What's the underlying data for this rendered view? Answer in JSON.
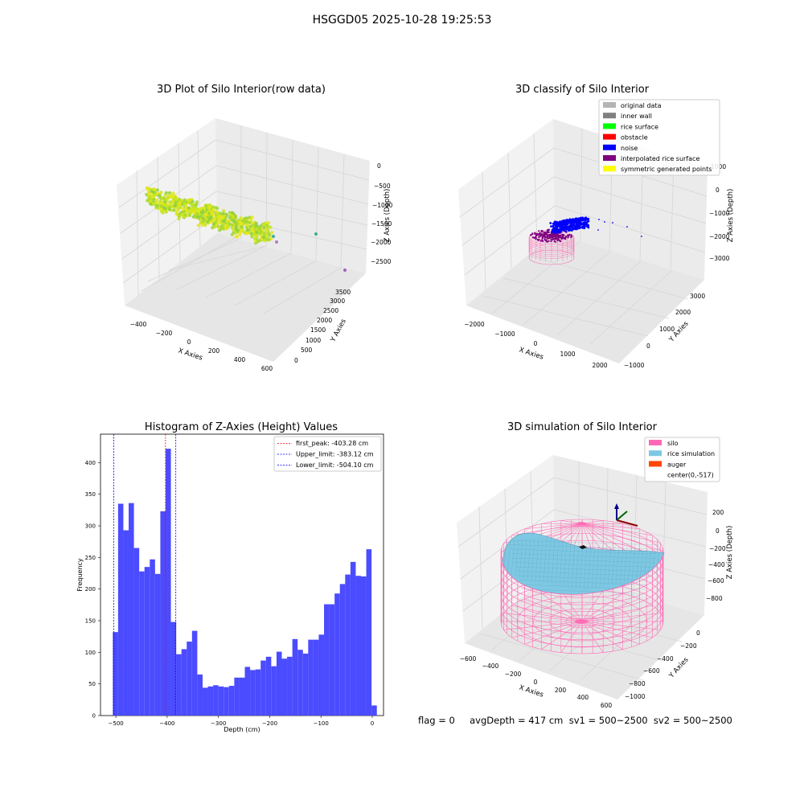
{
  "suptitle": "HSGGD05 2025-10-28 19:25:53",
  "footer": "flag = 0     avgDepth = 417 cm  sv1 = 500~2500  sv2 = 500~2500",
  "colors": {
    "pane": "#f2f2f2",
    "grid": "#d6d6d6",
    "hist": "#4b4bff",
    "silo": "#ff69b4",
    "rice": "#7ec8e3",
    "auger": "#ff4500",
    "noise": "#0000ff",
    "interp": "#800080"
  },
  "chart_data": [
    {
      "type": "scatter",
      "title": "3D Plot of Silo Interior(row data)",
      "xlabel": "X Axies",
      "ylabel": "Y Axies",
      "zlabel": "Z Axies (Depth)",
      "x_ticks": [
        "−400",
        "−200",
        "0",
        "200",
        "400",
        "600"
      ],
      "y_ticks": [
        "0",
        "500",
        "1000",
        "1500",
        "2000",
        "2500",
        "3000",
        "3500"
      ],
      "z_ticks": [
        "0",
        "−500",
        "−1000",
        "−1500",
        "−2000",
        "−2500"
      ],
      "grid": true
    },
    {
      "type": "scatter",
      "title": "3D classify of Silo Interior",
      "xlabel": "X Axies",
      "ylabel": "Y Axies",
      "zlabel": "Z Axies (Depth)",
      "x_ticks": [
        "−2000",
        "−1000",
        "0",
        "1000",
        "2000"
      ],
      "y_ticks": [
        "−1000",
        "0",
        "1000",
        "2000",
        "3000"
      ],
      "z_ticks": [
        "1000",
        "0",
        "−1000",
        "−2000",
        "−3000"
      ],
      "legend": {
        "position": "top-right",
        "items": [
          {
            "label": "original data",
            "color": "#b4b4b4"
          },
          {
            "label": "inner wall",
            "color": "#808080"
          },
          {
            "label": "rice surface",
            "color": "#00ff00"
          },
          {
            "label": "obstacle",
            "color": "#ff0000"
          },
          {
            "label": "noise",
            "color": "#0000ff"
          },
          {
            "label": "interpolated rice surface",
            "color": "#800080"
          },
          {
            "label": "symmetric generated points",
            "color": "#ffff00"
          }
        ]
      },
      "grid": true
    },
    {
      "type": "bar",
      "title": "Histogram of Z-Axies (Height) Values",
      "xlabel": "Depth (cm)",
      "ylabel": "Frequency",
      "xlim": [
        -530,
        22
      ],
      "ylim": [
        0,
        445
      ],
      "bin_start": -506,
      "bin_width": 10.3,
      "values": [
        132,
        335,
        293,
        336,
        265,
        228,
        235,
        247,
        224,
        323,
        422,
        148,
        97,
        105,
        117,
        134,
        65,
        44,
        46,
        48,
        46,
        45,
        47,
        60,
        60,
        77,
        72,
        73,
        87,
        93,
        78,
        101,
        90,
        93,
        121,
        104,
        98,
        120,
        120,
        128,
        176,
        176,
        193,
        208,
        223,
        243,
        221,
        220,
        263,
        16
      ],
      "x_ticks": [
        -500,
        -400,
        -300,
        -200,
        -100,
        0
      ],
      "x_tick_labels": [
        "−500",
        "−400",
        "−300",
        "−200",
        "−100",
        "0"
      ],
      "y_ticks": [
        0,
        50,
        100,
        150,
        200,
        250,
        300,
        350,
        400
      ],
      "vlines": [
        {
          "x": -403.28,
          "color": "#ff0000",
          "label": "first_peak: -403.28 cm"
        },
        {
          "x": -383.12,
          "color": "#0000ff",
          "label": "Upper_limit: -383.12 cm"
        },
        {
          "x": -504.1,
          "color": "#0000ff",
          "label": "Lower_limit: -504.10 cm"
        }
      ],
      "legend": {
        "position": "top-right"
      }
    },
    {
      "type": "area",
      "title": "3D simulation of Silo Interior",
      "xlabel": "X Axies",
      "ylabel": "Y Axies",
      "zlabel": "Z Axies (Depth)",
      "x_ticks": [
        "−600",
        "−400",
        "−200",
        "0",
        "200",
        "400",
        "600"
      ],
      "y_ticks": [
        "0",
        "−200",
        "−400",
        "−600",
        "−800",
        "−1000"
      ],
      "z_ticks": [
        "200",
        "0",
        "−200",
        "−400",
        "−600",
        "−800"
      ],
      "legend": {
        "position": "top-right",
        "items": [
          {
            "label": "silo",
            "color": "#ff69b4"
          },
          {
            "label": "rice simulation",
            "color": "#7ec8e3"
          },
          {
            "label": "auger",
            "color": "#ff4500"
          },
          {
            "label": "center(0,-517)",
            "color": ""
          }
        ]
      },
      "grid": true
    }
  ]
}
